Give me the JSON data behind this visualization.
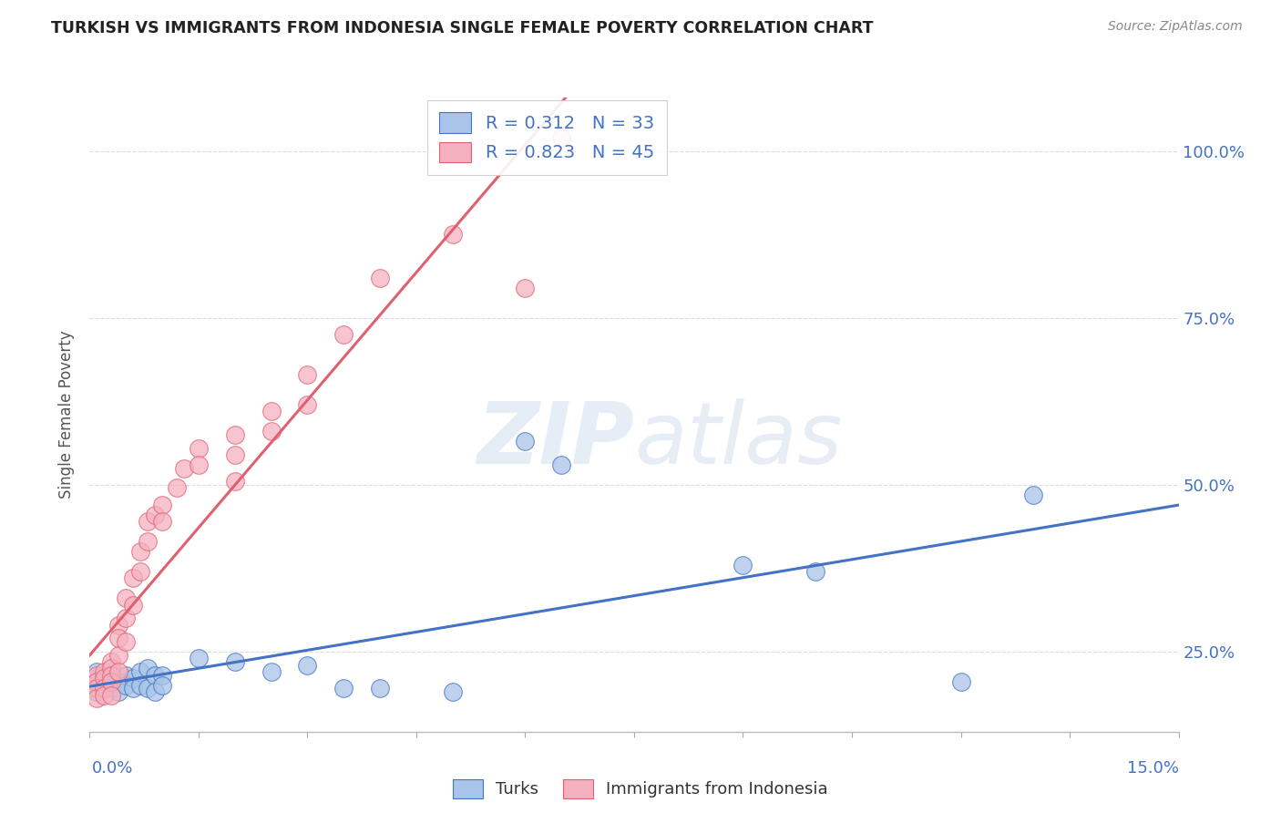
{
  "title": "TURKISH VS IMMIGRANTS FROM INDONESIA SINGLE FEMALE POVERTY CORRELATION CHART",
  "source": "Source: ZipAtlas.com",
  "ylabel": "Single Female Poverty",
  "yaxis_labels": [
    "100.0%",
    "75.0%",
    "50.0%",
    "25.0%"
  ],
  "yaxis_values": [
    1.0,
    0.75,
    0.5,
    0.25
  ],
  "xmin": 0.0,
  "xmax": 0.15,
  "ymin": 0.13,
  "ymax": 1.08,
  "turks_color": "#a8c4e8",
  "indonesia_color": "#f5b0bf",
  "turks_line_color": "#4472c4",
  "indonesia_line_color": "#e06070",
  "R_turks": 0.312,
  "N_turks": 33,
  "R_indonesia": 0.823,
  "N_indonesia": 45,
  "legend_label_turks": "Turks",
  "legend_label_indonesia": "Immigrants from Indonesia",
  "turks_x": [
    0.001,
    0.001,
    0.002,
    0.002,
    0.003,
    0.003,
    0.004,
    0.004,
    0.005,
    0.005,
    0.006,
    0.006,
    0.007,
    0.007,
    0.008,
    0.008,
    0.009,
    0.009,
    0.01,
    0.01,
    0.015,
    0.02,
    0.025,
    0.03,
    0.035,
    0.04,
    0.05,
    0.06,
    0.065,
    0.09,
    0.1,
    0.12,
    0.13
  ],
  "turks_y": [
    0.22,
    0.19,
    0.215,
    0.195,
    0.21,
    0.195,
    0.205,
    0.19,
    0.215,
    0.2,
    0.21,
    0.195,
    0.22,
    0.2,
    0.225,
    0.195,
    0.215,
    0.19,
    0.215,
    0.2,
    0.24,
    0.235,
    0.22,
    0.23,
    0.195,
    0.195,
    0.19,
    0.565,
    0.53,
    0.38,
    0.37,
    0.205,
    0.485
  ],
  "indonesia_x": [
    0.001,
    0.001,
    0.001,
    0.001,
    0.002,
    0.002,
    0.002,
    0.002,
    0.003,
    0.003,
    0.003,
    0.003,
    0.003,
    0.004,
    0.004,
    0.004,
    0.004,
    0.005,
    0.005,
    0.005,
    0.006,
    0.006,
    0.007,
    0.007,
    0.008,
    0.008,
    0.009,
    0.01,
    0.01,
    0.012,
    0.013,
    0.015,
    0.015,
    0.02,
    0.02,
    0.02,
    0.025,
    0.025,
    0.03,
    0.03,
    0.035,
    0.04,
    0.05,
    0.06,
    0.065
  ],
  "indonesia_y": [
    0.215,
    0.205,
    0.195,
    0.18,
    0.22,
    0.21,
    0.195,
    0.185,
    0.235,
    0.225,
    0.215,
    0.205,
    0.185,
    0.29,
    0.27,
    0.245,
    0.22,
    0.33,
    0.3,
    0.265,
    0.36,
    0.32,
    0.4,
    0.37,
    0.445,
    0.415,
    0.455,
    0.47,
    0.445,
    0.495,
    0.525,
    0.555,
    0.53,
    0.575,
    0.545,
    0.505,
    0.61,
    0.58,
    0.665,
    0.62,
    0.725,
    0.81,
    0.875,
    0.795,
    1.02
  ],
  "watermark_zip": "ZIP",
  "watermark_atlas": "atlas",
  "background_color": "#ffffff",
  "grid_color": "#dddddd",
  "title_color": "#222222",
  "axis_label_color": "#4472c4",
  "source_color": "#888888"
}
